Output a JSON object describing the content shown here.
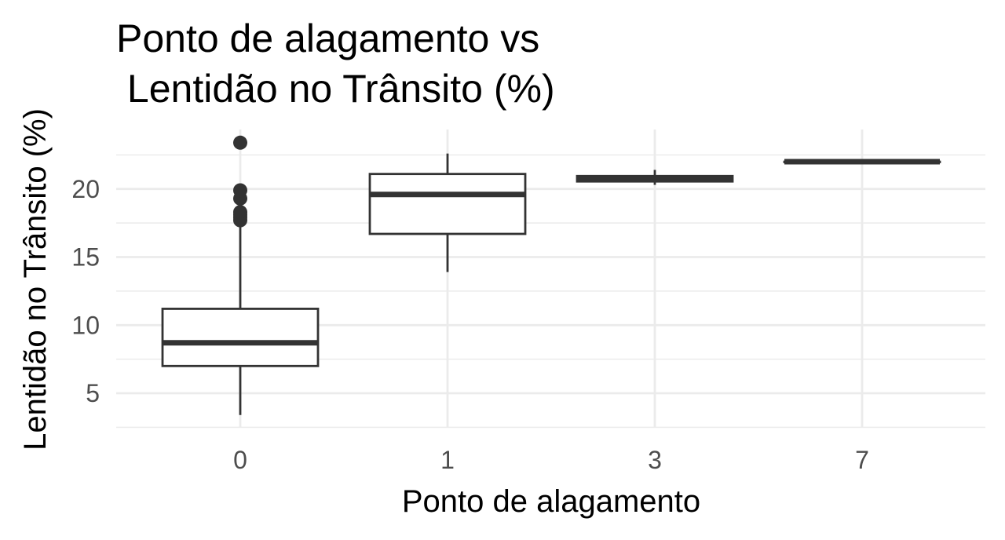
{
  "chart_data": {
    "type": "boxplot",
    "title_lines": [
      "Ponto de alagamento vs",
      " Lentidão no Trânsito (%)"
    ],
    "xlabel": "Ponto de alagamento",
    "ylabel": "Lentidão no Trânsito (%)",
    "categories": [
      "0",
      "1",
      "3",
      "7"
    ],
    "y_ticks": [
      5,
      10,
      15,
      20
    ],
    "ylim": [
      2.5,
      24.5
    ],
    "grid": true,
    "boxes": [
      {
        "category": "0",
        "min": 3.4,
        "q1": 7.0,
        "median": 8.7,
        "q3": 11.2,
        "max": 17.5,
        "outliers": [
          17.7,
          17.9,
          18.1,
          18.3,
          19.3,
          19.9,
          23.4
        ]
      },
      {
        "category": "1",
        "min": 13.9,
        "q1": 16.7,
        "median": 19.6,
        "q3": 21.1,
        "max": 22.6,
        "outliers": []
      },
      {
        "category": "3",
        "min": 20.3,
        "q1": 20.55,
        "median": 20.75,
        "q3": 20.95,
        "max": 21.4,
        "outliers": []
      },
      {
        "category": "7",
        "min": 22.0,
        "q1": 22.0,
        "median": 22.0,
        "q3": 22.0,
        "max": 22.0,
        "outliers": []
      }
    ]
  }
}
